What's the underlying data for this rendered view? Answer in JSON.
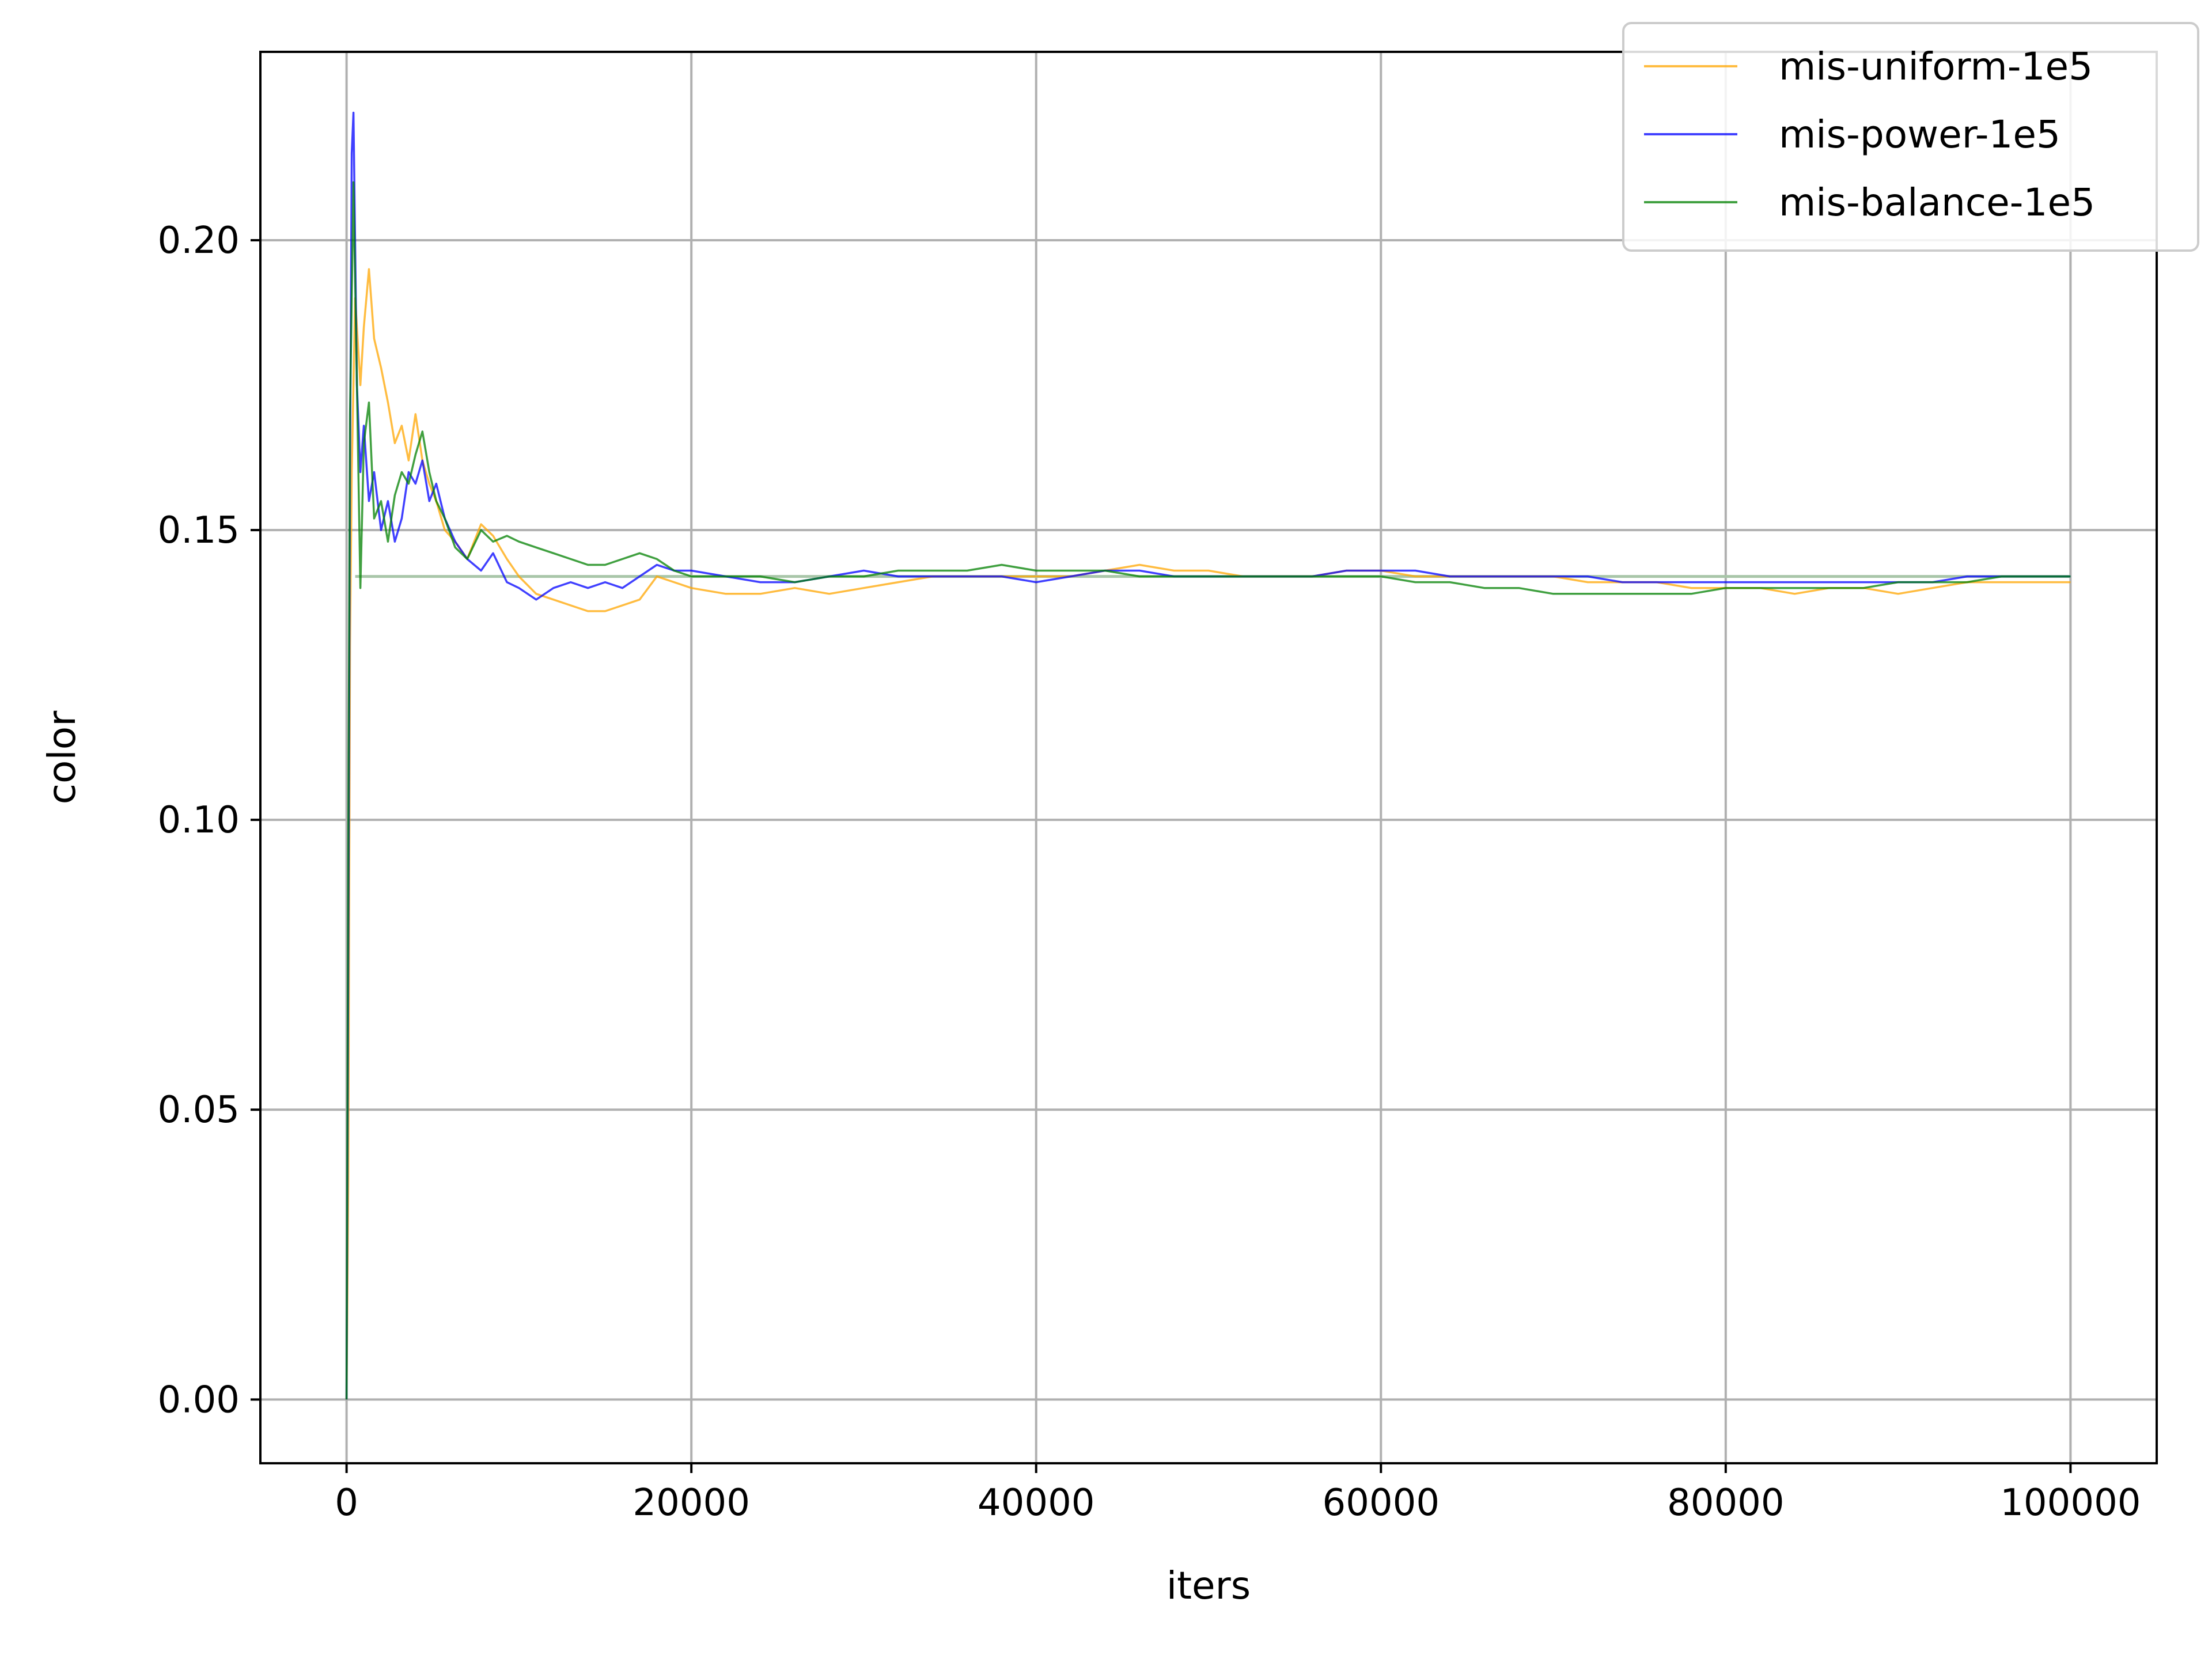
{
  "chart_data": {
    "type": "line",
    "title": "",
    "xlabel": "iters",
    "ylabel": "color",
    "xlim": [
      -5000,
      105000
    ],
    "ylim": [
      -0.011,
      0.2325
    ],
    "xticks": [
      0,
      20000,
      40000,
      60000,
      80000,
      100000
    ],
    "xtick_labels": [
      "0",
      "20000",
      "40000",
      "60000",
      "80000",
      "100000"
    ],
    "yticks": [
      0.0,
      0.05,
      0.1,
      0.15,
      0.2
    ],
    "ytick_labels": [
      "0.00",
      "0.05",
      "0.10",
      "0.15",
      "0.20"
    ],
    "grid": true,
    "legend_position": "upper-right",
    "reference_line": {
      "y": 0.142,
      "color": "#a9c6a9"
    },
    "series": [
      {
        "name": "mis-uniform-1e5",
        "color": "#ffa500",
        "x": [
          0,
          100,
          200,
          300,
          500,
          800,
          1000,
          1300,
          1600,
          2000,
          2400,
          2800,
          3200,
          3600,
          4000,
          4400,
          4800,
          5200,
          5700,
          6300,
          7000,
          7800,
          8500,
          9300,
          10000,
          11000,
          12000,
          13000,
          14000,
          15000,
          16000,
          17000,
          18000,
          19000,
          20000,
          22000,
          24000,
          26000,
          28000,
          30000,
          32000,
          34000,
          36000,
          38000,
          40000,
          42000,
          44000,
          46000,
          48000,
          50000,
          52000,
          54000,
          56000,
          58000,
          60000,
          62000,
          64000,
          66000,
          68000,
          70000,
          72000,
          74000,
          76000,
          78000,
          80000,
          82000,
          84000,
          86000,
          88000,
          90000,
          92000,
          94000,
          96000,
          98000,
          100000
        ],
        "y": [
          0.0,
          0.038,
          0.13,
          0.16,
          0.19,
          0.175,
          0.185,
          0.195,
          0.183,
          0.178,
          0.172,
          0.165,
          0.168,
          0.162,
          0.17,
          0.162,
          0.158,
          0.155,
          0.15,
          0.148,
          0.145,
          0.151,
          0.149,
          0.145,
          0.142,
          0.139,
          0.138,
          0.137,
          0.136,
          0.136,
          0.137,
          0.138,
          0.142,
          0.141,
          0.14,
          0.139,
          0.139,
          0.14,
          0.139,
          0.14,
          0.141,
          0.142,
          0.142,
          0.142,
          0.142,
          0.142,
          0.143,
          0.144,
          0.143,
          0.143,
          0.142,
          0.142,
          0.142,
          0.143,
          0.143,
          0.142,
          0.142,
          0.142,
          0.142,
          0.142,
          0.141,
          0.141,
          0.141,
          0.14,
          0.14,
          0.14,
          0.139,
          0.14,
          0.14,
          0.139,
          0.14,
          0.141,
          0.141,
          0.141,
          0.141
        ]
      },
      {
        "name": "mis-power-1e5",
        "color": "#0000ff",
        "x": [
          0,
          100,
          200,
          300,
          400,
          600,
          800,
          1000,
          1300,
          1600,
          2000,
          2400,
          2800,
          3200,
          3600,
          4000,
          4400,
          4800,
          5200,
          5700,
          6300,
          7000,
          7800,
          8500,
          9300,
          10000,
          11000,
          12000,
          13000,
          14000,
          15000,
          16000,
          17000,
          18000,
          19000,
          20000,
          22000,
          24000,
          26000,
          28000,
          30000,
          32000,
          34000,
          36000,
          38000,
          40000,
          42000,
          44000,
          46000,
          48000,
          50000,
          52000,
          54000,
          56000,
          58000,
          60000,
          62000,
          64000,
          66000,
          68000,
          70000,
          72000,
          74000,
          76000,
          78000,
          80000,
          82000,
          84000,
          86000,
          88000,
          90000,
          92000,
          94000,
          96000,
          98000,
          100000
        ],
        "y": [
          0.0,
          0.075,
          0.16,
          0.215,
          0.222,
          0.175,
          0.16,
          0.168,
          0.155,
          0.16,
          0.15,
          0.155,
          0.148,
          0.152,
          0.16,
          0.158,
          0.162,
          0.155,
          0.158,
          0.152,
          0.148,
          0.145,
          0.143,
          0.146,
          0.141,
          0.14,
          0.138,
          0.14,
          0.141,
          0.14,
          0.141,
          0.14,
          0.142,
          0.144,
          0.143,
          0.143,
          0.142,
          0.141,
          0.141,
          0.142,
          0.143,
          0.142,
          0.142,
          0.142,
          0.142,
          0.141,
          0.142,
          0.143,
          0.143,
          0.142,
          0.142,
          0.142,
          0.142,
          0.142,
          0.143,
          0.143,
          0.143,
          0.142,
          0.142,
          0.142,
          0.142,
          0.142,
          0.141,
          0.141,
          0.141,
          0.141,
          0.141,
          0.141,
          0.141,
          0.141,
          0.141,
          0.141,
          0.142,
          0.142,
          0.142,
          0.142
        ]
      },
      {
        "name": "mis-balance-1e5",
        "color": "#008000",
        "x": [
          0,
          100,
          200,
          300,
          400,
          600,
          800,
          1000,
          1300,
          1600,
          2000,
          2400,
          2800,
          3200,
          3600,
          4000,
          4400,
          4800,
          5200,
          5700,
          6300,
          7000,
          7800,
          8500,
          9300,
          10000,
          11000,
          12000,
          13000,
          14000,
          15000,
          16000,
          17000,
          18000,
          19000,
          20000,
          22000,
          24000,
          26000,
          28000,
          30000,
          32000,
          34000,
          36000,
          38000,
          40000,
          42000,
          44000,
          46000,
          48000,
          50000,
          52000,
          54000,
          56000,
          58000,
          60000,
          62000,
          64000,
          66000,
          68000,
          70000,
          72000,
          74000,
          76000,
          78000,
          80000,
          82000,
          84000,
          86000,
          88000,
          90000,
          92000,
          94000,
          96000,
          98000,
          100000
        ],
        "y": [
          0.0,
          0.095,
          0.17,
          0.19,
          0.21,
          0.175,
          0.14,
          0.165,
          0.172,
          0.152,
          0.155,
          0.148,
          0.156,
          0.16,
          0.158,
          0.163,
          0.167,
          0.16,
          0.155,
          0.152,
          0.147,
          0.145,
          0.15,
          0.148,
          0.149,
          0.148,
          0.147,
          0.146,
          0.145,
          0.144,
          0.144,
          0.145,
          0.146,
          0.145,
          0.143,
          0.142,
          0.142,
          0.142,
          0.141,
          0.142,
          0.142,
          0.143,
          0.143,
          0.143,
          0.144,
          0.143,
          0.143,
          0.143,
          0.142,
          0.142,
          0.142,
          0.142,
          0.142,
          0.142,
          0.142,
          0.142,
          0.141,
          0.141,
          0.14,
          0.14,
          0.139,
          0.139,
          0.139,
          0.139,
          0.139,
          0.14,
          0.14,
          0.14,
          0.14,
          0.14,
          0.141,
          0.141,
          0.141,
          0.142,
          0.142,
          0.142
        ]
      }
    ]
  }
}
